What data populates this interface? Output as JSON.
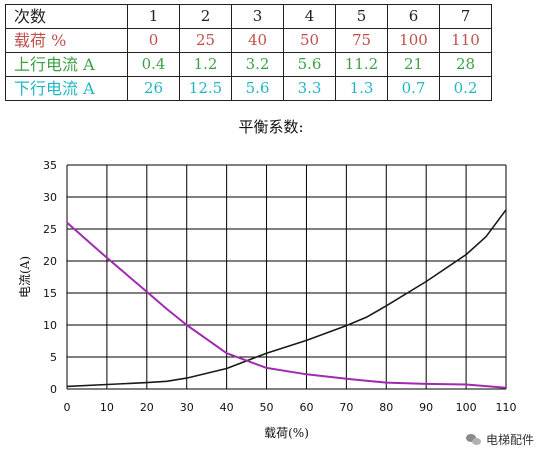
{
  "table": {
    "rows": [
      {
        "label": "次数",
        "values": [
          "1",
          "2",
          "3",
          "4",
          "5",
          "6",
          "7"
        ]
      },
      {
        "label": "载荷 %",
        "values": [
          "0",
          "25",
          "40",
          "50",
          "75",
          "100",
          "110"
        ]
      },
      {
        "label": "上行电流 A",
        "values": [
          "0.4",
          "1.2",
          "3.2",
          "5.6",
          "11.2",
          "21",
          "28"
        ]
      },
      {
        "label": "下行电流 A",
        "values": [
          "26",
          "12.5",
          "5.6",
          "3.3",
          "1.3",
          "0.7",
          "0.2"
        ]
      }
    ]
  },
  "watermark": "电梯配件",
  "colors": {
    "up": "#1a1a1a",
    "down": "#a02bb0",
    "grid": "#000000"
  },
  "chart_data": {
    "type": "line",
    "title": "平衡系数:",
    "xlabel": "载荷(%)",
    "ylabel": "电流(A)",
    "xlim": [
      0,
      110
    ],
    "ylim": [
      0,
      35
    ],
    "xticks": [
      "0",
      "10",
      "20",
      "30",
      "40",
      "50",
      "60",
      "70",
      "80",
      "90",
      "100",
      "110"
    ],
    "yticks": [
      "0",
      "5",
      "10",
      "15",
      "20",
      "25",
      "30",
      "35"
    ],
    "grid": true,
    "series": [
      {
        "x": [
          0,
          10,
          20,
          25,
          30,
          40,
          50,
          60,
          70,
          75,
          80,
          90,
          100,
          105,
          110
        ],
        "y": [
          0.4,
          0.7,
          1.0,
          1.2,
          1.7,
          3.2,
          5.6,
          7.6,
          9.9,
          11.2,
          13.0,
          16.8,
          21.0,
          23.8,
          28.0
        ]
      },
      {
        "x": [
          0,
          10,
          20,
          25,
          30,
          40,
          50,
          60,
          70,
          75,
          80,
          90,
          100,
          110
        ],
        "y": [
          26.0,
          20.5,
          15.2,
          12.5,
          10.0,
          5.6,
          3.3,
          2.3,
          1.6,
          1.3,
          1.0,
          0.8,
          0.7,
          0.2
        ]
      }
    ]
  }
}
